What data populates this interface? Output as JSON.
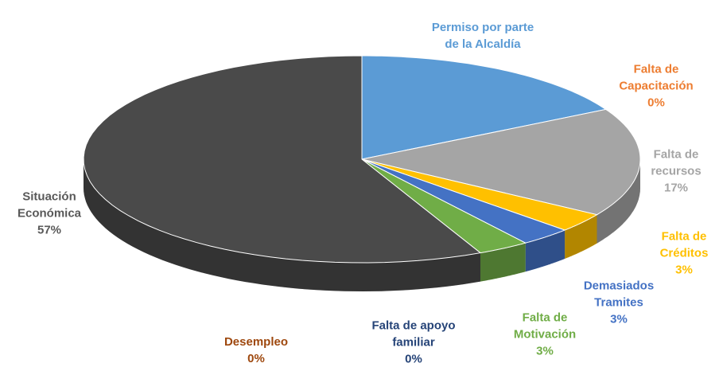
{
  "chart_data": {
    "type": "pie3d",
    "categories": [
      "Permiso por parte de la Alcaldía",
      "Falta de Capacitación",
      "Falta de recursos",
      "Falta de Créditos",
      "Demasiados Tramites",
      "Falta de Motivación",
      "Falta de apoyo familiar",
      "Desempleo",
      "Situación Económica"
    ],
    "values": [
      17,
      0,
      17,
      3,
      3,
      3,
      0,
      0,
      57
    ],
    "value_labels": [
      null,
      "0%",
      "17%",
      "3%",
      "3%",
      "3%",
      "0%",
      "0%",
      "57%"
    ],
    "colors": [
      "#5b9bd5",
      "#ed7d31",
      "#a5a5a5",
      "#ffc000",
      "#4472c4",
      "#70ad47",
      "#264478",
      "#9e480e",
      "#4a4a4a"
    ]
  }
}
